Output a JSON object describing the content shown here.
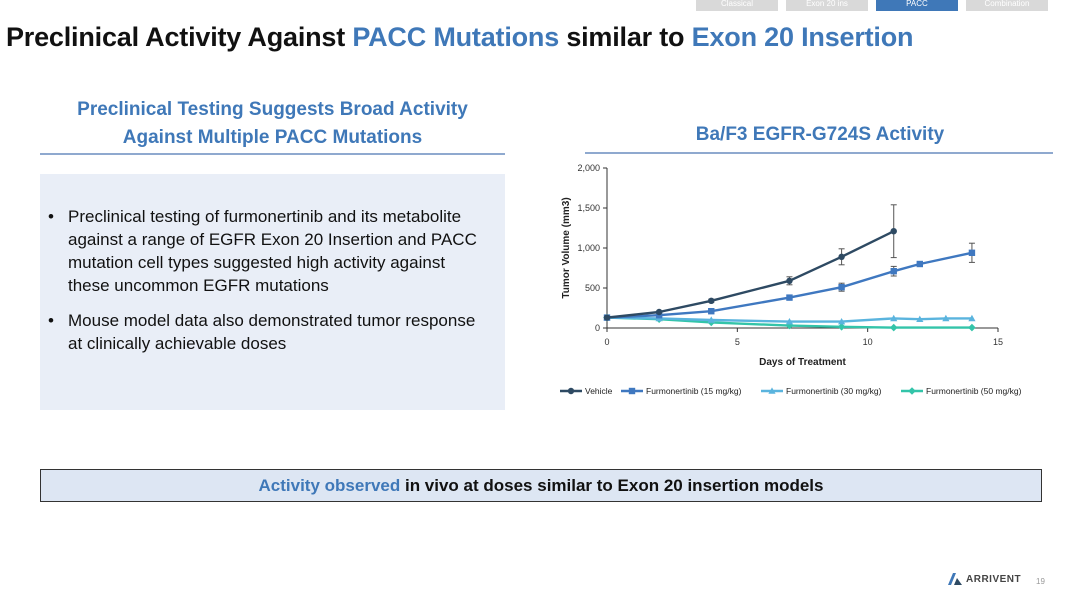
{
  "nav": {
    "tabs": [
      "Classical",
      "Exon 20 ins",
      "PACC",
      "Combination"
    ],
    "active_index": 2
  },
  "title": {
    "part1": "Preclinical Activity Against ",
    "part2": "PACC Mutations",
    "part3": " similar to ",
    "part4": "Exon 20 Insertion"
  },
  "left": {
    "heading_line1": "Preclinical Testing Suggests Broad Activity",
    "heading_line2": "Against Multiple PACC Mutations",
    "bullets": [
      "Preclinical testing of furmonertinib and its metabolite against a range of EGFR Exon 20 Insertion and PACC mutation cell types suggested high activity against these uncommon EGFR mutations",
      "Mouse model data also demonstrated tumor response at clinically achievable doses"
    ]
  },
  "right": {
    "heading": "Ba/F3 EGFR-G724S Activity"
  },
  "chart_data": {
    "type": "line",
    "xlabel": "Days of Treatment",
    "ylabel": "Tumor Volume (mm3)",
    "xlim": [
      0,
      15
    ],
    "ylim": [
      0,
      2000
    ],
    "xticks": [
      "0",
      "5",
      "10",
      "15"
    ],
    "yticks": [
      "0",
      "500",
      "1,000",
      "1,500",
      "2,000"
    ],
    "legend_position": "bottom",
    "series": [
      {
        "name": "Vehicle",
        "color": "#2e4a63",
        "marker": "circle",
        "x": [
          0,
          2,
          4,
          7,
          9,
          11
        ],
        "y": [
          130,
          200,
          340,
          590,
          890,
          1210
        ],
        "err": [
          0,
          10,
          20,
          50,
          100,
          330
        ]
      },
      {
        "name": "Furmonertinib (15 mg/kg)",
        "color": "#3f78c0",
        "marker": "square",
        "x": [
          0,
          2,
          4,
          7,
          9,
          11,
          12,
          14
        ],
        "y": [
          130,
          160,
          210,
          380,
          510,
          710,
          800,
          940
        ],
        "err": [
          0,
          10,
          15,
          25,
          50,
          60,
          0,
          120
        ]
      },
      {
        "name": "Furmonertinib (30 mg/kg)",
        "color": "#5ab4de",
        "marker": "triangle",
        "x": [
          0,
          2,
          4,
          7,
          9,
          11,
          12,
          13,
          14
        ],
        "y": [
          130,
          120,
          100,
          80,
          80,
          120,
          110,
          120,
          120
        ],
        "err": [
          0,
          0,
          0,
          0,
          0,
          0,
          0,
          0,
          0
        ]
      },
      {
        "name": "Furmonertinib (50 mg/kg)",
        "color": "#33c4a9",
        "marker": "diamond",
        "x": [
          0,
          2,
          4,
          7,
          9,
          11,
          14
        ],
        "y": [
          130,
          110,
          70,
          30,
          15,
          5,
          5
        ],
        "err": [
          0,
          0,
          0,
          0,
          0,
          0,
          0
        ]
      }
    ]
  },
  "callout": {
    "highlight": "Activity observed",
    "rest": " in vivo at doses similar to Exon 20 insertion models"
  },
  "footer": {
    "logo_text": "ARRIVENT",
    "page_number": "19"
  }
}
